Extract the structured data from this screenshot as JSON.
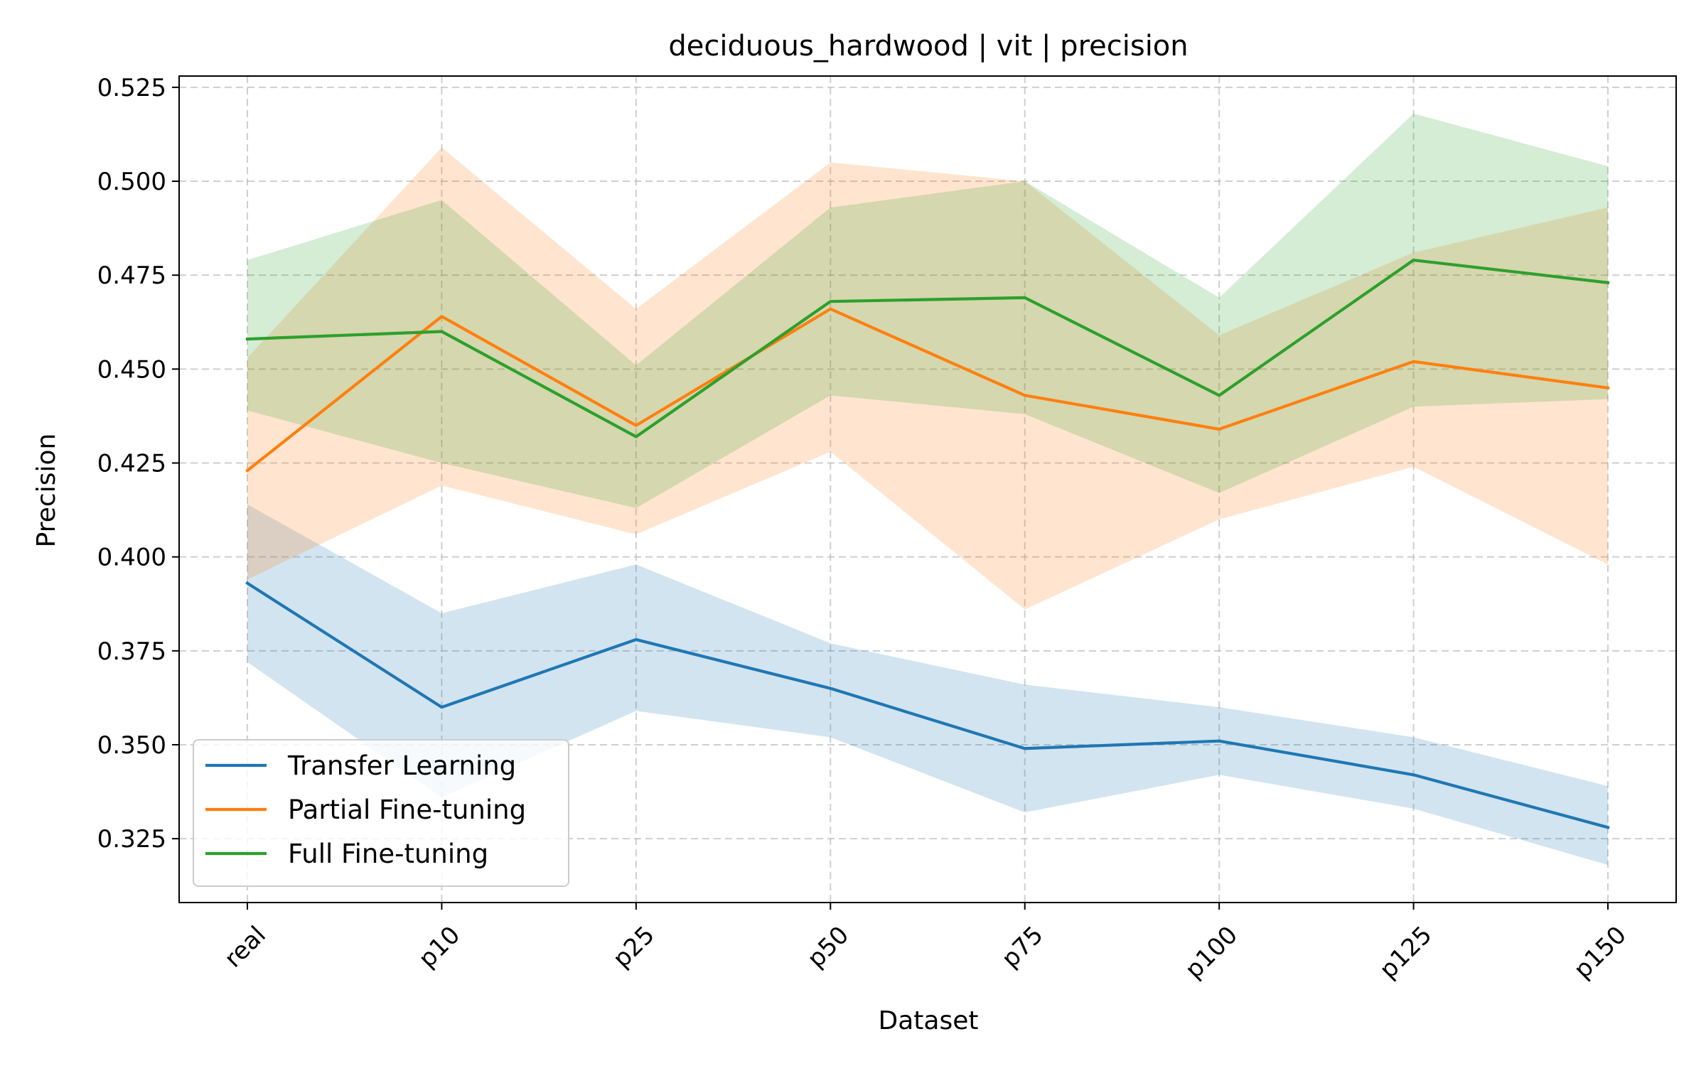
{
  "chart_data": {
    "type": "line",
    "title": "deciduous_hardwood | vit | precision",
    "xlabel": "Dataset",
    "ylabel": "Precision",
    "categories": [
      "real",
      "p10",
      "p25",
      "p50",
      "p75",
      "p100",
      "p125",
      "p150"
    ],
    "ylim": [
      0.308,
      0.528
    ],
    "yticks": [
      "0.325",
      "0.350",
      "0.375",
      "0.400",
      "0.425",
      "0.450",
      "0.475",
      "0.500",
      "0.525"
    ],
    "grid": true,
    "legend_position": "lower-left",
    "series": [
      {
        "name": "Transfer Learning",
        "color": "#1f77b4",
        "values": [
          0.393,
          0.36,
          0.378,
          0.365,
          0.349,
          0.351,
          0.342,
          0.328
        ],
        "lower": [
          0.372,
          0.336,
          0.359,
          0.352,
          0.332,
          0.342,
          0.333,
          0.318
        ],
        "upper": [
          0.414,
          0.385,
          0.398,
          0.377,
          0.366,
          0.36,
          0.352,
          0.339
        ]
      },
      {
        "name": "Partial Fine-tuning",
        "color": "#ff7f0e",
        "values": [
          0.423,
          0.464,
          0.435,
          0.466,
          0.443,
          0.434,
          0.452,
          0.445
        ],
        "lower": [
          0.394,
          0.419,
          0.406,
          0.428,
          0.386,
          0.41,
          0.424,
          0.398
        ],
        "upper": [
          0.453,
          0.509,
          0.466,
          0.505,
          0.5,
          0.459,
          0.481,
          0.493
        ]
      },
      {
        "name": "Full Fine-tuning",
        "color": "#2ca02c",
        "values": [
          0.458,
          0.46,
          0.432,
          0.468,
          0.469,
          0.443,
          0.479,
          0.473
        ],
        "lower": [
          0.439,
          0.425,
          0.413,
          0.443,
          0.438,
          0.417,
          0.44,
          0.442
        ],
        "upper": [
          0.479,
          0.495,
          0.451,
          0.493,
          0.5,
          0.469,
          0.518,
          0.504
        ]
      }
    ]
  }
}
